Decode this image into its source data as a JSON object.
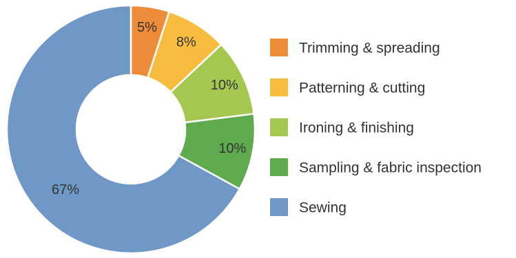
{
  "chart_data": {
    "type": "pie",
    "variant": "donut",
    "title": "",
    "categories": [
      "Trimming & spreading",
      "Patterning & cutting",
      "Ironing & finishing",
      "Sampling & fabric inspection",
      "Sewing"
    ],
    "values": [
      5,
      8,
      10,
      10,
      67
    ],
    "value_labels": [
      "5%",
      "8%",
      "10%",
      "10%",
      "67%"
    ],
    "colors": [
      "#ef8c3a",
      "#f8bd3f",
      "#a4c74f",
      "#5fa94f",
      "#6f98c6"
    ],
    "legend": {
      "placement": "right",
      "entries": [
        "Trimming & spreading",
        "Patterning & cutting",
        "Ironing & finishing",
        "Sampling & fabric inspection",
        "Sewing"
      ]
    }
  }
}
